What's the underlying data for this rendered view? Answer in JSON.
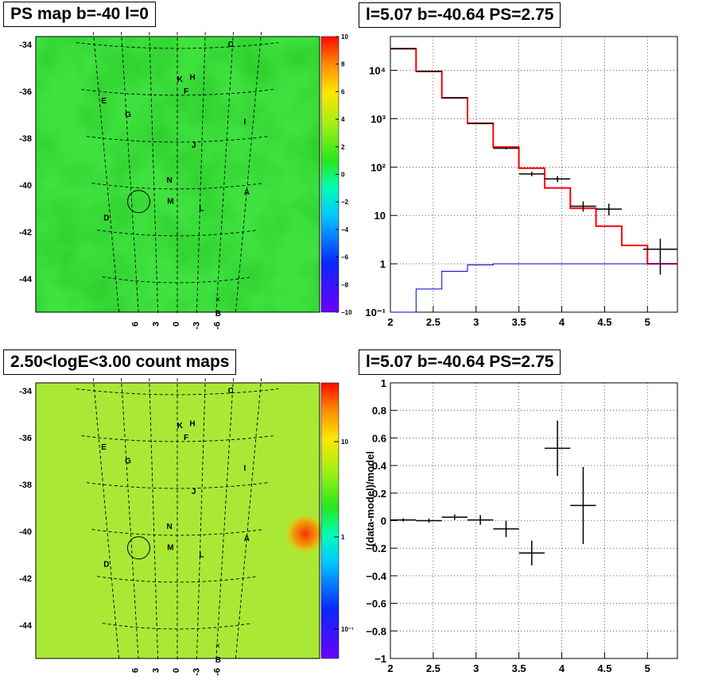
{
  "panels": {
    "tl_title": "PS map b=-40 l=0",
    "tr_title": "l=5.07 b=-40.64 PS=2.75",
    "bl_title": "2.50<logE<3.00 count maps",
    "br_title": "l=5.07 b=-40.64 PS=2.75",
    "br_ylabel": "(data-model)/model"
  },
  "maps": {
    "background_colors": {
      "ps_map": "#3fe23f",
      "count_map": "#a8e93a"
    },
    "b_ticks": [
      "-34",
      "-36",
      "-38",
      "-40",
      "-42",
      "-44"
    ],
    "l_ticks": [
      "6",
      "3",
      "0",
      "-3",
      "-6"
    ],
    "sources": [
      {
        "name": "C",
        "l": -5.8,
        "b": -33.9
      },
      {
        "name": "K",
        "l": -0.3,
        "b": -35.4
      },
      {
        "name": "H",
        "l": -1.7,
        "b": -35.3
      },
      {
        "name": "E",
        "l": 8.5,
        "b": -36.3
      },
      {
        "name": "F",
        "l": -1.0,
        "b": -35.9
      },
      {
        "name": "G",
        "l": 5.8,
        "b": -36.9
      },
      {
        "name": "I",
        "l": -8.0,
        "b": -37.2
      },
      {
        "name": "J",
        "l": -2.0,
        "b": -38.2
      },
      {
        "name": "N",
        "l": 1.0,
        "b": -39.7
      },
      {
        "name": "A",
        "l": -9.0,
        "b": -40.2
      },
      {
        "name": "M",
        "l": 0.9,
        "b": -40.6
      },
      {
        "name": "L",
        "l": -3.2,
        "b": -40.9
      },
      {
        "name": "D",
        "l": 9.5,
        "b": -41.3
      },
      {
        "name": "B",
        "l": -6.3,
        "b": -45.4
      }
    ],
    "circle": {
      "l": 5.07,
      "b": -40.64
    },
    "cross": {
      "l": -6.1,
      "b": -44.8
    },
    "ps_colorbar": {
      "ticks": [
        "10",
        "8",
        "6",
        "4",
        "2",
        "0",
        "−2",
        "−4",
        "−6",
        "−8",
        "−10"
      ]
    },
    "count_colorbar": {
      "ticks": [
        "10",
        "1",
        "10⁻¹"
      ]
    }
  },
  "chart_data": [
    {
      "type": "line",
      "title": "l=5.07 b=-40.64 PS=2.75",
      "xlim": [
        2,
        5.35
      ],
      "ylim": [
        0.1,
        50000
      ],
      "yscale": "log",
      "x_ticks": [
        "2",
        "2.5",
        "3",
        "3.5",
        "4",
        "4.5",
        "5"
      ],
      "y_ticks": [
        {
          "v": 0.1,
          "label": "10⁻¹"
        },
        {
          "v": 1,
          "label": "1"
        },
        {
          "v": 10,
          "label": "10"
        },
        {
          "v": 100,
          "label": "10²"
        },
        {
          "v": 1000,
          "label": "10³"
        },
        {
          "v": 10000,
          "label": "10⁴"
        }
      ],
      "grid": true,
      "bin_edges": [
        2.0,
        2.3,
        2.6,
        2.9,
        3.2,
        3.5,
        3.8,
        4.1,
        4.4,
        4.7,
        5.0,
        5.35
      ],
      "series": [
        {
          "color": "#ff0000",
          "values": [
            28000,
            9500,
            2700,
            800,
            260,
            95,
            37,
            14,
            6,
            2.4,
            1.0
          ]
        },
        {
          "color": "#0000cc",
          "values": [
            0.1,
            0.3,
            0.7,
            0.95,
            1.0,
            1.0,
            1.0,
            1.0,
            1.0,
            1.0,
            1.0
          ]
        }
      ],
      "data_points": [
        {
          "x": 2.15,
          "y": 28000,
          "xerr": 0.15,
          "ylo": 27800,
          "yhi": 28200
        },
        {
          "x": 2.45,
          "y": 9500,
          "xerr": 0.15,
          "ylo": 9400,
          "yhi": 9600
        },
        {
          "x": 2.75,
          "y": 2700,
          "xerr": 0.15,
          "ylo": 2650,
          "yhi": 2750
        },
        {
          "x": 3.05,
          "y": 800,
          "xerr": 0.15,
          "ylo": 780,
          "yhi": 820
        },
        {
          "x": 3.35,
          "y": 245,
          "xerr": 0.15,
          "ylo": 232,
          "yhi": 258
        },
        {
          "x": 3.65,
          "y": 72,
          "xerr": 0.15,
          "ylo": 65,
          "yhi": 80
        },
        {
          "x": 3.95,
          "y": 57,
          "xerr": 0.15,
          "ylo": 49,
          "yhi": 65
        },
        {
          "x": 4.25,
          "y": 15.5,
          "xerr": 0.15,
          "ylo": 12,
          "yhi": 19.5
        },
        {
          "x": 4.55,
          "y": 13.5,
          "xerr": 0.15,
          "ylo": 10,
          "yhi": 17.5
        },
        {
          "x": 5.15,
          "y": 2.0,
          "xerr": 0.2,
          "ylo": 0.6,
          "yhi": 3.3
        }
      ]
    },
    {
      "type": "scatter",
      "title": "l=5.07 b=-40.64 PS=2.75",
      "ylabel": "(data-model)/model",
      "xlim": [
        2,
        5.35
      ],
      "ylim": [
        -1,
        1
      ],
      "x_ticks": [
        "2",
        "2.5",
        "3",
        "3.5",
        "4",
        "4.5",
        "5"
      ],
      "y_ticks": [
        "1",
        "0.8",
        "0.6",
        "0.4",
        "0.2",
        "0",
        "−0.2",
        "−0.4",
        "−0.6",
        "−0.8",
        "−1"
      ],
      "grid": true,
      "points": [
        {
          "x": 2.15,
          "y": 0.005,
          "xerr": 0.15,
          "yerr": 0.012
        },
        {
          "x": 2.45,
          "y": 0.0,
          "xerr": 0.15,
          "yerr": 0.015
        },
        {
          "x": 2.75,
          "y": 0.025,
          "xerr": 0.15,
          "yerr": 0.02
        },
        {
          "x": 3.05,
          "y": 0.005,
          "xerr": 0.15,
          "yerr": 0.035
        },
        {
          "x": 3.35,
          "y": -0.06,
          "xerr": 0.15,
          "yerr": 0.06
        },
        {
          "x": 3.65,
          "y": -0.235,
          "xerr": 0.15,
          "yerr": 0.09
        },
        {
          "x": 3.95,
          "y": 0.525,
          "xerr": 0.15,
          "yerr": 0.2
        },
        {
          "x": 4.25,
          "y": 0.11,
          "xerr": 0.15,
          "yerr": 0.28
        }
      ]
    }
  ]
}
